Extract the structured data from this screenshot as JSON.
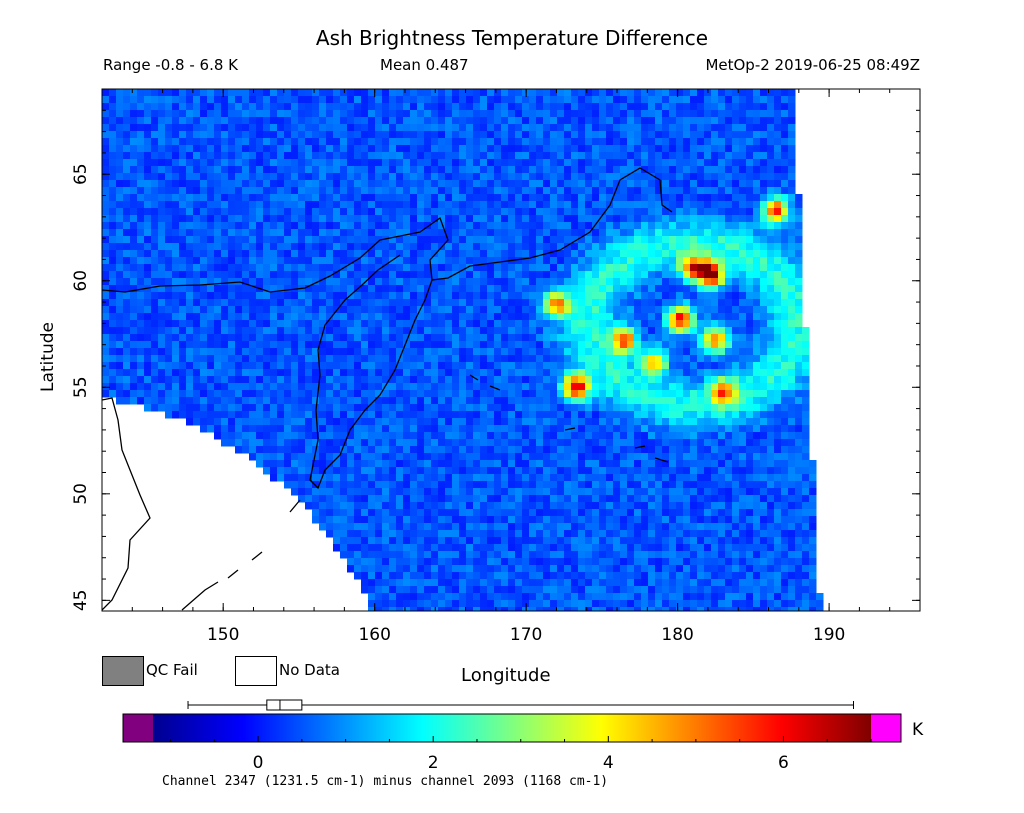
{
  "chart_data": {
    "type": "heatmap",
    "title": "Ash Brightness Temperature Difference",
    "range_text": "Range -0.8 - 6.8 K",
    "mean_text": "Mean 0.487",
    "satellite_text": "MetOp-2 2019-06-25 08:49Z",
    "xlabel": "Longitude",
    "ylabel": "Latitude",
    "x_range": [
      142,
      196
    ],
    "y_range": [
      44.5,
      69
    ],
    "x_ticks": [
      150,
      160,
      170,
      180,
      190
    ],
    "y_ticks": [
      45,
      50,
      55,
      60,
      65
    ],
    "legend": [
      {
        "label": "QC Fail",
        "color": "#808080"
      },
      {
        "label": "No Data",
        "color": "#ffffff"
      }
    ],
    "colorbar": {
      "range": [
        -1.2,
        7.0
      ],
      "ticks": [
        0,
        2,
        4,
        6
      ],
      "unit": "K",
      "under_color": "#800080",
      "over_color": "#ff00ff",
      "data_min": -0.8,
      "data_max": 6.8,
      "box_q1": 0.1,
      "box_median": 0.25,
      "box_q3": 0.5,
      "caption": "Channel 2347 (1231.5 cm-1) minus channel 2093 (1168 cm-1)"
    },
    "features": {
      "background_value": 0.5,
      "ash_hotspots": [
        {
          "lon": 182.2,
          "lat": 60.3,
          "value": 6.8
        },
        {
          "lon": 181.0,
          "lat": 60.6,
          "value": 5.4
        },
        {
          "lon": 180.2,
          "lat": 58.2,
          "value": 6.2
        },
        {
          "lon": 182.5,
          "lat": 57.2,
          "value": 5.0
        },
        {
          "lon": 173.3,
          "lat": 55.0,
          "value": 6.1
        },
        {
          "lon": 176.5,
          "lat": 57.2,
          "value": 5.2
        },
        {
          "lon": 172.0,
          "lat": 58.9,
          "value": 4.6
        },
        {
          "lon": 183.0,
          "lat": 54.8,
          "value": 4.4
        },
        {
          "lon": 186.5,
          "lat": 63.3,
          "value": 5.6
        },
        {
          "lon": 178.5,
          "lat": 56.2,
          "value": 4.0
        }
      ]
    }
  }
}
